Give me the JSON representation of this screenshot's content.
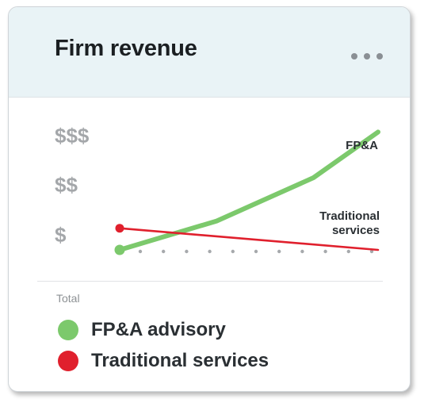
{
  "header": {
    "title": "Firm revenue",
    "menu_icon": "more-horizontal-icon"
  },
  "legend": {
    "caption": "Total",
    "items": [
      {
        "label": "FP&A advisory",
        "color": "#7cc96c"
      },
      {
        "label": "Traditional services",
        "color": "#e0202d"
      }
    ]
  },
  "chart_data": {
    "type": "line",
    "title": "",
    "y_tick_labels": [
      "$",
      "$$",
      "$$$"
    ],
    "ylim": [
      0,
      3
    ],
    "xlim": [
      0,
      8
    ],
    "grid": "dotted baseline",
    "series": [
      {
        "name": "FP&A",
        "legend_name": "FP&A advisory",
        "color": "#7cc96c",
        "x": [
          0,
          3,
          6,
          8
        ],
        "y": [
          0.0,
          0.6,
          1.5,
          2.45
        ]
      },
      {
        "name": "Traditional services",
        "legend_name": "Traditional services",
        "color": "#e0202d",
        "x": [
          0,
          8
        ],
        "y": [
          0.45,
          0.0
        ]
      }
    ],
    "annotations": [
      {
        "series": "FP&A",
        "label": "FP&A"
      },
      {
        "series": "Traditional services",
        "label": "Traditional\nservices"
      }
    ]
  }
}
